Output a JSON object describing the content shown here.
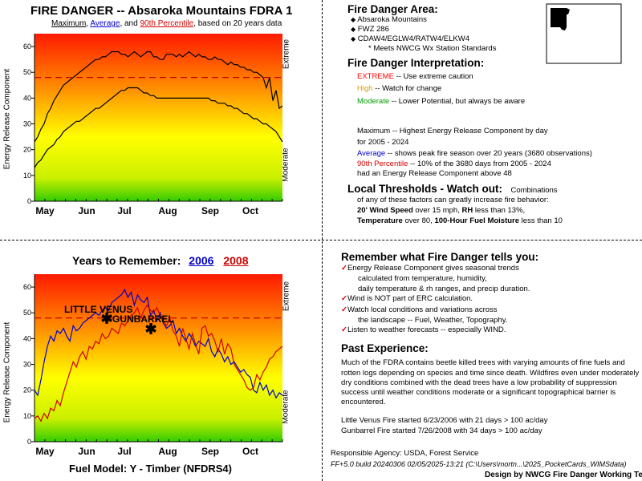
{
  "top_chart": {
    "title": "FIRE DANGER -- Absaroka Mountains FDRA 1",
    "subtitle_parts": [
      "Maximum",
      ", ",
      "Average",
      ", and ",
      "90th Percentile",
      ", based on 20 years data"
    ],
    "ylabel": "Energy Release Component",
    "right_labels": [
      "Extreme",
      "Moderate"
    ],
    "colors": {
      "max": "#000000",
      "avg": "#000000",
      "p90": "#cc0000",
      "blue": "#0000cc",
      "red": "#d00000"
    }
  },
  "bottom_chart": {
    "title_prefix": "Years to Remember:",
    "year1": "2006",
    "year2": "2008",
    "ylabel": "Energy Release Component",
    "right_labels": [
      "Extreme",
      "Moderate"
    ],
    "fuel_model": "Fuel Model: Y - Timber (NFDRS4)",
    "fire1": "LITTLE VENUS",
    "fire2": "GUNBARREL"
  },
  "chart_data": [
    {
      "type": "line",
      "title": "FIRE DANGER -- Absaroka Mountains FDRA 1",
      "ylabel": "Energy Release Component",
      "ylim": [
        0,
        65
      ],
      "yticks": [
        0,
        10,
        20,
        30,
        40,
        50,
        60
      ],
      "xlabels": [
        "May",
        "Jun",
        "Jul",
        "Aug",
        "Sep",
        "Oct"
      ],
      "grid": false,
      "series": [
        {
          "name": "Maximum",
          "color": "#000000",
          "values": [
            23,
            25,
            28,
            30,
            34,
            36,
            39,
            41,
            43,
            45,
            46,
            47,
            48,
            49,
            50,
            51,
            52,
            53,
            54,
            55,
            55,
            56,
            56,
            57,
            58,
            58,
            58,
            57,
            57,
            56,
            57,
            58,
            57,
            56,
            57,
            58,
            58,
            56,
            56,
            55,
            55,
            57,
            57,
            57,
            56,
            57,
            56,
            57,
            58,
            57,
            56,
            57,
            56,
            56,
            55,
            55,
            56,
            55,
            55,
            54,
            53,
            54,
            53,
            53,
            52,
            52,
            51,
            51,
            50,
            50,
            49,
            48,
            44,
            48,
            39,
            43,
            36,
            37
          ]
        },
        {
          "name": "Average",
          "color": "#000000",
          "values": [
            13,
            15,
            16,
            18,
            20,
            21,
            22,
            24,
            25,
            27,
            28,
            29,
            30,
            31,
            31,
            32,
            33,
            34,
            35,
            36,
            36,
            37,
            38,
            39,
            40,
            41,
            42,
            43,
            43,
            44,
            44,
            44,
            44,
            43,
            42,
            42,
            41,
            41,
            40,
            40,
            40,
            40,
            40,
            40,
            40,
            40,
            40,
            40,
            40,
            40,
            40,
            40,
            40,
            40,
            40,
            39,
            39,
            38,
            38,
            38,
            37,
            37,
            36,
            36,
            35,
            34,
            34,
            33,
            32,
            32,
            31,
            30,
            30,
            29,
            28,
            27,
            25,
            23
          ]
        },
        {
          "name": "90th Percentile",
          "color": "#cc0000",
          "constant": 48
        }
      ]
    },
    {
      "type": "line",
      "title": "Years to Remember: 2006 2008",
      "ylabel": "Energy Release Component",
      "ylim": [
        0,
        65
      ],
      "yticks": [
        0,
        10,
        20,
        30,
        40,
        50,
        60
      ],
      "xlabels": [
        "May",
        "Jun",
        "Jul",
        "Aug",
        "Sep",
        "Oct"
      ],
      "grid": false,
      "threshold": 48,
      "series": [
        {
          "name": "2006",
          "color": "#0000cc",
          "values": [
            20,
            18,
            24,
            31,
            37,
            41,
            39,
            43,
            42,
            44,
            41,
            39,
            45,
            43,
            44,
            46,
            47,
            48,
            49,
            50,
            49,
            51,
            52,
            51,
            54,
            55,
            56,
            57,
            59,
            56,
            58,
            53,
            57,
            55,
            54,
            56,
            49,
            51,
            47,
            50,
            46,
            44,
            45,
            47,
            42,
            44,
            41,
            39,
            42,
            40,
            37,
            39,
            38,
            37,
            40,
            35,
            33,
            36,
            34,
            31,
            33,
            30,
            31,
            29,
            27,
            28,
            26,
            25,
            20,
            19,
            23,
            20,
            22,
            18,
            20,
            17,
            19,
            18
          ]
        },
        {
          "name": "2008",
          "color": "#cc0000",
          "values": [
            9,
            10,
            8,
            11,
            9,
            13,
            12,
            16,
            14,
            19,
            23,
            27,
            31,
            29,
            33,
            35,
            32,
            37,
            36,
            39,
            38,
            42,
            40,
            41,
            44,
            43,
            42,
            46,
            45,
            47,
            49,
            50,
            52,
            48,
            51,
            53,
            51,
            50,
            52,
            49,
            47,
            45,
            48,
            43,
            41,
            37,
            44,
            40,
            36,
            42,
            38,
            34,
            44,
            45,
            41,
            42,
            39,
            35,
            40,
            34,
            38,
            36,
            30,
            28,
            26,
            24,
            21,
            20,
            21,
            26,
            24,
            27,
            29,
            32,
            33,
            35,
            36,
            37
          ]
        }
      ],
      "markers": [
        {
          "label": "LITTLE VENUS",
          "date": "6/23/2006",
          "value": 48
        },
        {
          "label": "GUNBARREL",
          "date": "7/26/2008",
          "value": 44
        }
      ]
    }
  ],
  "right_top": {
    "area_heading": "Fire Danger Area:",
    "area_items": [
      "Absaroka Mountains",
      "FWZ 286",
      "CDAW4/EGLW4/RATW4/ELKW4"
    ],
    "area_note": "* Meets NWCG Wx Station Standards",
    "interp_heading": "Fire Danger Interpretation:",
    "extreme_word": "EXTREME",
    "extreme_text": " -- Use extreme caution",
    "high_word": "High",
    "high_text": " -- Watch for change",
    "moderate_word": "Moderate",
    "moderate_text": " -- Lower Potential, but always be aware",
    "max_line1": "Maximum  -- Highest Energy Release Component by day",
    "max_line2": "for 2005 - 2024",
    "avg_word": "Average",
    "avg_text": " -- shows peak fire season over 20 years (3680 observations)",
    "p90_word": "90th Percentile",
    "p90_text": "  -- 10% of the 3680 days from 2005 - 2024",
    "p90_line2": "had an Energy Release Component above 48",
    "thresh_heading": "Local Thresholds - Watch out:",
    "thresh_suffix": "Combinations",
    "thresh_line1": "of any of these factors can greatly increase fire behavior:",
    "thresh_wind_b": "20' Wind Speed",
    "thresh_wind": " over 15 mph, ",
    "thresh_rh_b": "RH",
    "thresh_rh": "  less than 13%,",
    "thresh_temp_b": "Temperature",
    "thresh_temp": " over 80, ",
    "thresh_fuel_b": "100-Hour Fuel Moisture",
    "thresh_fuel": " less than 10"
  },
  "right_bottom": {
    "remember_heading": "Remember what Fire Danger tells you:",
    "r1": "Energy Release Component gives seasonal trends",
    "r1a": "calculated from temperature, humidity,",
    "r1b": "daily temperature & rh ranges, and precip duration.",
    "r2": "Wind is NOT part of ERC calculation.",
    "r3": "Watch local conditions and variations across",
    "r3a": "the landscape -- Fuel, Weather, Topography.",
    "r4": "Listen to weather forecasts -- especially WIND.",
    "past_heading": "Past Experience:",
    "past_lines": [
      "Much of the FDRA contains beetle killed trees with varying amounts of fine fuels and",
      "rotten logs depending on species and time since death.  Wildfires even under moderately",
      "dry conditions combined with the dead trees have a low probability of suppression",
      "success until weather conditions moderate or a significant topographical barrier is",
      "encountered."
    ],
    "fire_line1": "Little Venus Fire started 6/23/2006 with 21 days > 100 ac/day",
    "fire_line2": "Gunbarrel Fire started 7/26/2008 with 34 days > 100 ac/day",
    "agency": "Responsible Agency: USDA, Forest Service",
    "build": "FF+5.0 build 20240306 02/05/2025-13:21 (C:\\Users\\mortn...\\2025_PocketCards_WIMSdata)",
    "design": "Design by NWCG Fire Danger Working Team"
  }
}
